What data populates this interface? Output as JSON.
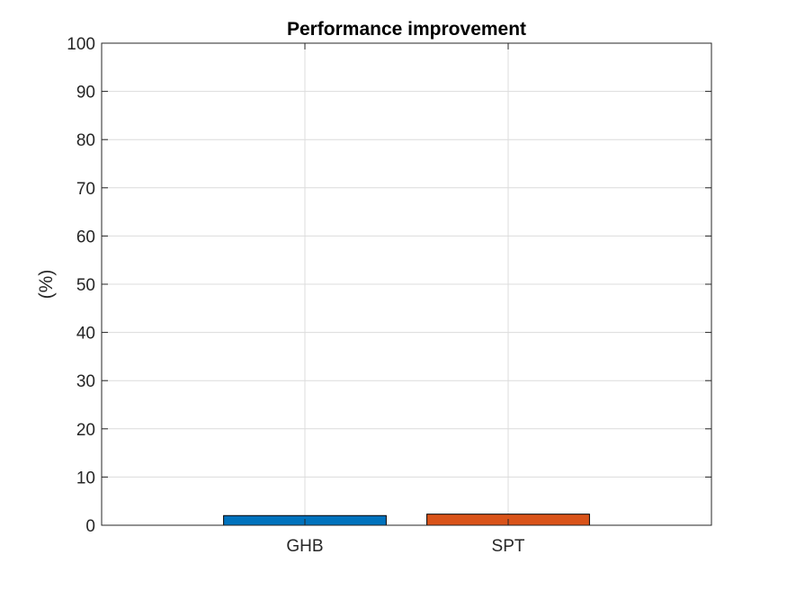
{
  "chart_data": {
    "type": "bar",
    "title": "Performance improvement",
    "xlabel": "",
    "ylabel": "(%)",
    "categories": [
      "GHB",
      "SPT"
    ],
    "values": [
      2.0,
      2.3
    ],
    "colors": [
      "#0072BD",
      "#D95319"
    ],
    "xlim": [
      0,
      3
    ],
    "ylim": [
      0,
      100
    ],
    "yticks": [
      0,
      10,
      20,
      30,
      40,
      50,
      60,
      70,
      80,
      90,
      100
    ],
    "grid": true,
    "legend": "none"
  }
}
